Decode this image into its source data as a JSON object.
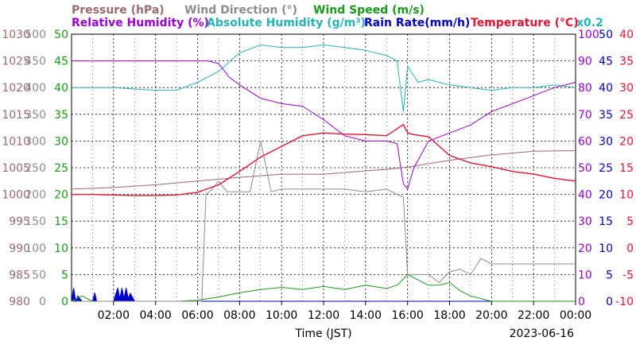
{
  "chart_data": {
    "type": "line",
    "date": "2023-06-16",
    "xlabel": "Time (JST)",
    "x_ticks": [
      "02:00",
      "04:00",
      "06:00",
      "08:00",
      "10:00",
      "12:00",
      "14:00",
      "16:00",
      "18:00",
      "20:00",
      "22:00",
      "00:00"
    ],
    "x_range_hours": [
      0,
      24
    ],
    "axes": {
      "pressure": {
        "label": "Pressure (hPa)",
        "range": [
          980,
          1030
        ],
        "ticks": [
          "1030",
          "1025",
          "1020",
          "1015",
          "1010",
          "1005",
          "1000",
          "995",
          "990",
          "985",
          "980"
        ],
        "color": "#9c6b6b"
      },
      "wind_dir": {
        "label": "Wind Direction (°)",
        "range": [
          0,
          500
        ],
        "ticks": [
          "500",
          "450",
          "400",
          "350",
          "300",
          "250",
          "200",
          "150",
          "100",
          "50",
          "0"
        ],
        "color": "#8c8c8c"
      },
      "wind_speed": {
        "label": "Wind Speed (m/s)",
        "range": [
          0,
          50
        ],
        "ticks": [
          "50",
          "45",
          "40",
          "35",
          "30",
          "25",
          "20",
          "15",
          "10",
          "5",
          "0"
        ],
        "color": "#1a9a1a"
      },
      "humidity": {
        "label": "Relative Humidity (%)",
        "range": [
          0,
          100
        ],
        "ticks": [
          "100",
          "90",
          "80",
          "70",
          "60",
          "50",
          "40",
          "30",
          "20",
          "10",
          "0"
        ],
        "color": "#9900dd"
      },
      "abs_humidity": {
        "label": "Absolute Humidity (g/m³)",
        "multiplier": "x0.2",
        "color": "#22b5b5"
      },
      "rain": {
        "label": "Rain Rate(mm/h)",
        "range": [
          0,
          50
        ],
        "ticks": [
          "50",
          "45",
          "40",
          "35",
          "30",
          "25",
          "20",
          "15",
          "10",
          "5",
          "0"
        ],
        "color": "#0000cc"
      },
      "temperature": {
        "label": "Temperature (°C)",
        "range": [
          -10,
          40
        ],
        "ticks": [
          "40",
          "35",
          "30",
          "25",
          "20",
          "15",
          "10",
          "5",
          "0",
          "-5",
          "-10"
        ],
        "color": "#ee1133"
      }
    },
    "series": [
      {
        "key": "pressure",
        "unit": "hPa",
        "x": [
          0,
          2,
          4,
          6,
          8,
          10,
          12,
          14,
          15,
          16,
          18,
          20,
          22,
          24
        ],
        "y": [
          1001,
          1001.3,
          1001.8,
          1002.5,
          1003.2,
          1003.8,
          1003.8,
          1004.4,
          1004.7,
          1005.1,
          1006.4,
          1007.4,
          1008.1,
          1008.2
        ]
      },
      {
        "key": "temperature",
        "unit": "°C",
        "x": [
          0,
          1,
          2,
          3,
          4,
          5,
          6,
          7,
          8,
          9,
          10,
          11,
          12,
          13,
          14,
          15,
          15.5,
          15.8,
          16,
          16.3,
          17,
          18,
          19,
          20,
          21,
          22,
          23,
          24
        ],
        "y": [
          10,
          10,
          9.9,
          9.8,
          9.8,
          9.9,
          10.4,
          11.8,
          14.3,
          17,
          19,
          21,
          21.5,
          21.3,
          21.2,
          21,
          22.3,
          23.1,
          21.5,
          21.2,
          20.8,
          17.3,
          15.9,
          15.2,
          14.3,
          13.8,
          13,
          12.5
        ]
      },
      {
        "key": "humidity",
        "unit": "%",
        "x": [
          0,
          2,
          4,
          6,
          6.5,
          7,
          7.5,
          8,
          9,
          10,
          11,
          12,
          13,
          14,
          15,
          15.5,
          15.8,
          16,
          16.3,
          17,
          18,
          19,
          20,
          21,
          22,
          23,
          24
        ],
        "y": [
          90,
          90,
          90,
          90,
          90,
          89,
          84,
          81,
          76,
          74,
          73,
          68,
          62,
          60,
          60,
          59,
          44,
          42,
          50,
          60,
          63,
          66,
          71,
          74,
          77,
          80,
          82
        ]
      },
      {
        "key": "abs_humidity",
        "unit": "g/m³ x0.2",
        "x": [
          0,
          2,
          4,
          5,
          6,
          7,
          8,
          9,
          10,
          11,
          12,
          13,
          14,
          15,
          15.5,
          15.8,
          16,
          16.5,
          17,
          18,
          19,
          20,
          21,
          22,
          23,
          24
        ],
        "y": [
          80,
          80,
          79,
          79,
          82,
          86,
          93,
          96,
          95,
          95,
          96,
          95,
          94,
          92,
          90,
          71,
          88,
          82,
          83,
          81,
          80,
          79,
          80,
          80,
          81,
          80
        ]
      },
      {
        "key": "wind_dir",
        "unit": "°",
        "x": [
          0,
          6.2,
          6.4,
          6.7,
          7,
          7.4,
          8,
          8.5,
          9,
          9.5,
          10,
          11,
          12,
          13,
          14,
          15,
          15.5,
          15.8,
          16,
          16.5,
          17,
          17.5,
          18,
          18.5,
          19,
          19.5,
          20,
          21,
          22,
          23,
          24
        ],
        "y": [
          0,
          0,
          200,
          210,
          225,
          205,
          205,
          205,
          300,
          205,
          210,
          210,
          210,
          210,
          205,
          210,
          200,
          195,
          50,
          50,
          50,
          35,
          55,
          60,
          50,
          80,
          70,
          70,
          70,
          70,
          70
        ]
      },
      {
        "key": "wind_speed",
        "unit": "m/s",
        "x": [
          0,
          0.5,
          1,
          2,
          3,
          4,
          5,
          6,
          7,
          8,
          9,
          10,
          11,
          12,
          13,
          14,
          15,
          15.5,
          16,
          16.5,
          17,
          17.5,
          18,
          18.5,
          19,
          19.5,
          20,
          22,
          24
        ],
        "y": [
          0,
          1,
          0,
          0,
          0,
          0,
          0,
          0.2,
          0.8,
          1.6,
          2.2,
          2.6,
          2.2,
          2.8,
          2.2,
          3,
          2.4,
          3,
          5,
          4,
          3,
          3,
          3.5,
          2,
          1,
          0.5,
          0,
          0,
          0
        ]
      },
      {
        "key": "rain",
        "unit": "mm/h",
        "x": [
          0,
          0.1,
          0.2,
          0.3,
          0.5,
          1,
          1.1,
          1.2,
          2,
          2.2,
          2.3,
          2.4,
          2.5,
          2.6,
          2.7,
          2.8,
          3,
          24
        ],
        "y": [
          0,
          2.5,
          0,
          1,
          0,
          0,
          1.6,
          0,
          0,
          2.5,
          0.5,
          2.5,
          0.5,
          2.5,
          0.5,
          1.5,
          0,
          0
        ]
      }
    ],
    "grid": true
  }
}
